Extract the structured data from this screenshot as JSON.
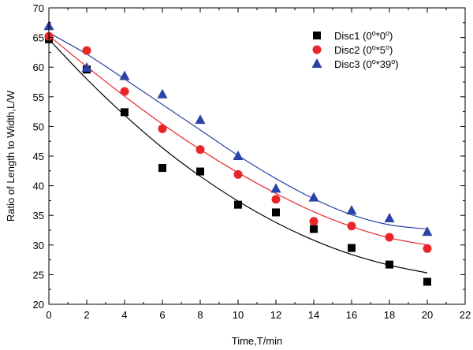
{
  "chart_data": {
    "type": "scatter",
    "xlabel": "Time,T/min",
    "ylabel": "Ratio of  Length to Width,L/W",
    "xlim": [
      0,
      22
    ],
    "ylim": [
      20,
      70
    ],
    "x_ticks": [
      0,
      2,
      4,
      6,
      8,
      10,
      12,
      14,
      16,
      18,
      20,
      22
    ],
    "y_ticks": [
      20,
      25,
      30,
      35,
      40,
      45,
      50,
      55,
      60,
      65,
      70
    ],
    "grid": false,
    "legend_position": "top-right",
    "series": [
      {
        "name": "Disc1",
        "angle_a": "0",
        "angle_b": "0",
        "marker": "square",
        "color": "#000000",
        "x": [
          0,
          2,
          4,
          6,
          8,
          10,
          12,
          14,
          16,
          18,
          20
        ],
        "y": [
          64.7,
          59.6,
          52.4,
          43.0,
          42.4,
          36.8,
          35.5,
          32.7,
          29.5,
          26.7,
          23.8
        ],
        "fit": [
          64.7,
          58.0,
          51.9,
          46.4,
          41.6,
          37.4,
          33.8,
          30.8,
          28.4,
          26.6,
          25.3
        ]
      },
      {
        "name": "Disc2",
        "angle_a": "0",
        "angle_b": "5",
        "marker": "circle",
        "color": "#e8262a",
        "x": [
          0,
          2,
          4,
          6,
          8,
          10,
          12,
          14,
          16,
          18,
          20
        ],
        "y": [
          65.2,
          62.8,
          55.9,
          49.6,
          46.1,
          41.9,
          37.7,
          34.0,
          33.2,
          31.3,
          29.4
        ],
        "fit": [
          65.3,
          60.1,
          55.1,
          50.4,
          46.1,
          42.2,
          38.7,
          35.6,
          33.1,
          31.2,
          30.0
        ]
      },
      {
        "name": "Disc3",
        "angle_a": "0",
        "angle_b": "39",
        "marker": "triangle",
        "color": "#2c43a6",
        "x": [
          0,
          2,
          4,
          6,
          8,
          10,
          12,
          14,
          16,
          18,
          20
        ],
        "y": [
          66.9,
          59.9,
          58.5,
          55.4,
          51.1,
          45.0,
          39.5,
          38.0,
          35.8,
          34.5,
          32.2
        ],
        "fit": [
          65.8,
          62.2,
          58.0,
          53.7,
          49.4,
          45.1,
          41.2,
          37.8,
          35.1,
          33.4,
          32.7
        ]
      }
    ]
  }
}
